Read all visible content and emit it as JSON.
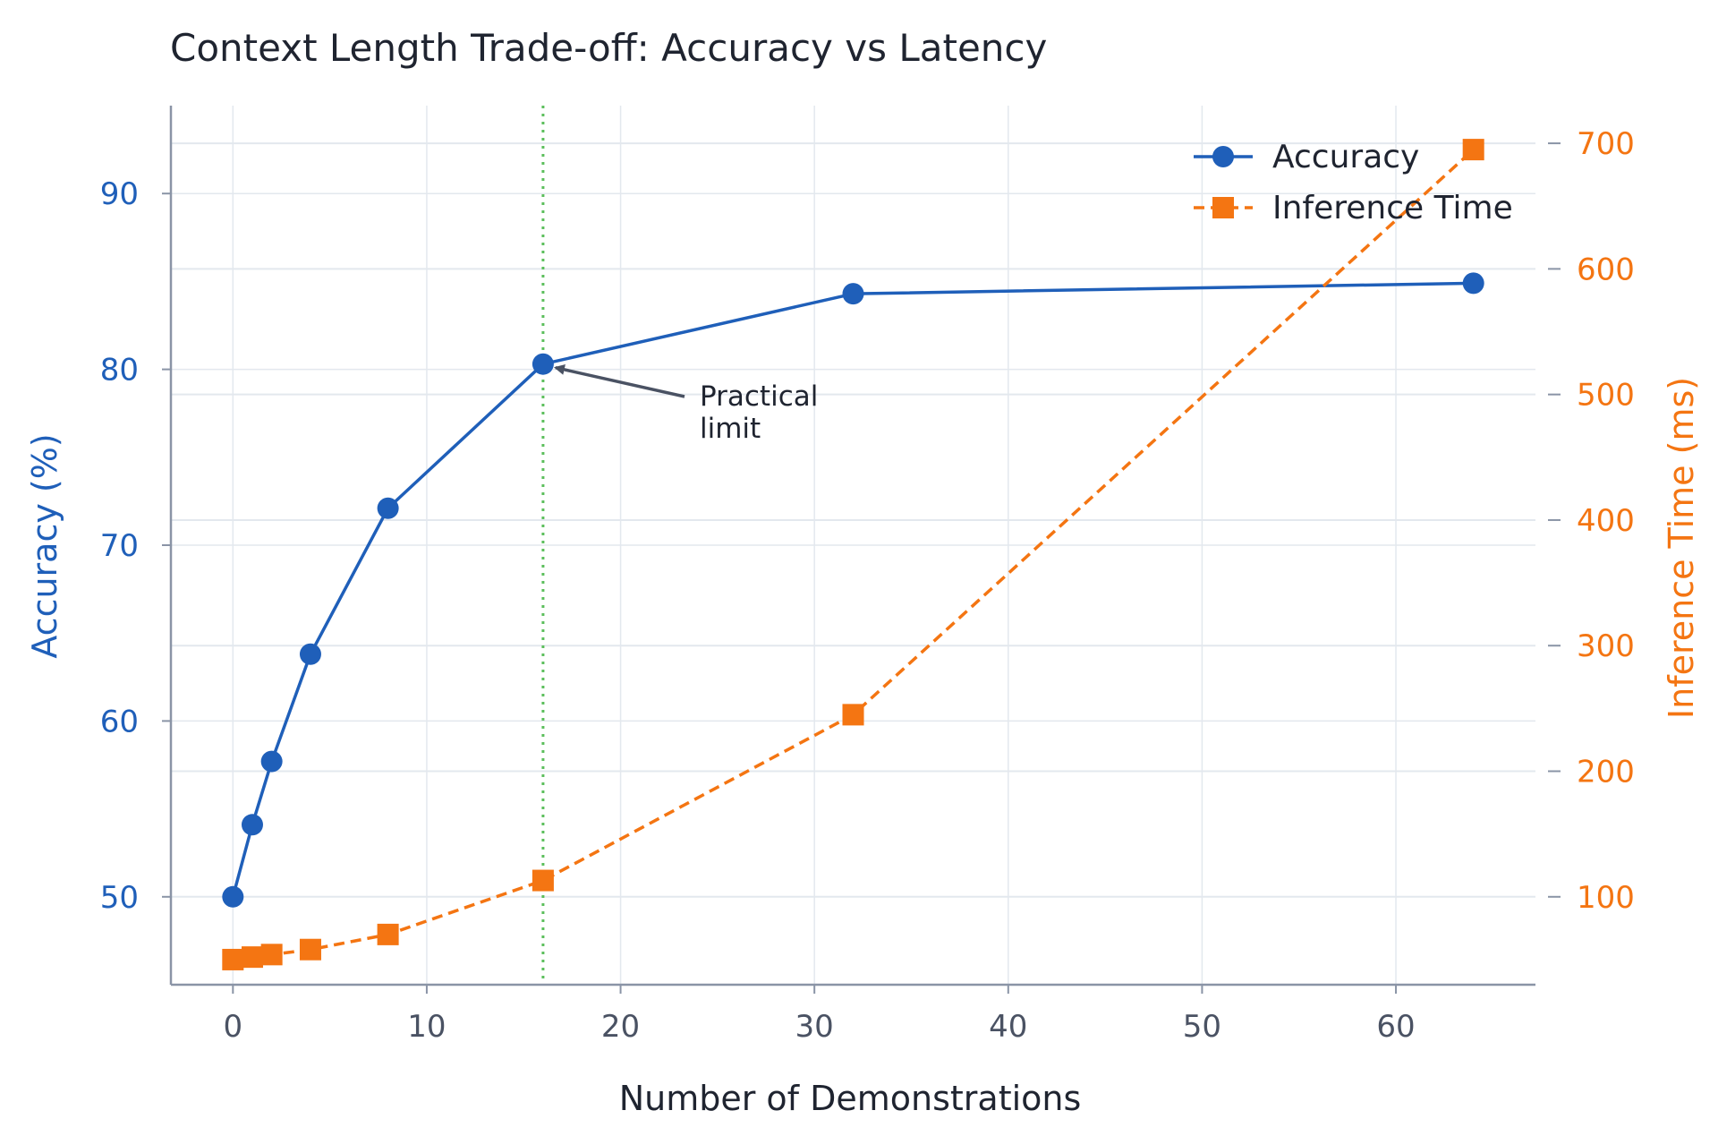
{
  "chart_data": {
    "type": "line",
    "title": "Context Length Trade-off: Accuracy vs Latency",
    "xlabel": "Number of Demonstrations",
    "ylabel_left": "Accuracy (%)",
    "ylabel_right": "Inference Time (ms)",
    "x": [
      0,
      1,
      2,
      4,
      8,
      16,
      32,
      64
    ],
    "xlim": [
      -3.2,
      67.2
    ],
    "xticks": [
      0,
      10,
      20,
      30,
      40,
      50,
      60
    ],
    "ylim_left": [
      45,
      95
    ],
    "yticks_left": [
      50,
      60,
      70,
      80,
      90
    ],
    "ylim_right": [
      30,
      730
    ],
    "yticks_right": [
      100,
      200,
      300,
      400,
      500,
      600,
      700
    ],
    "grid": true,
    "legend": "top-right",
    "series": [
      {
        "name": "Accuracy",
        "axis": "left",
        "marker": "circle",
        "linestyle": "solid",
        "color": "#1f5fb9",
        "values": [
          50.0,
          54.1,
          57.7,
          63.8,
          72.1,
          80.3,
          84.3,
          84.9
        ]
      },
      {
        "name": "Inference Time",
        "axis": "right",
        "marker": "square",
        "linestyle": "dashed",
        "color": "#f47512",
        "values": [
          50,
          52,
          54,
          58,
          70,
          113,
          245,
          695
        ]
      }
    ],
    "reference_line": {
      "x": 16,
      "color": "#5cbf5c",
      "style": "dotted"
    },
    "annotation": {
      "lines": [
        "Practical",
        "limit"
      ],
      "arrow_to": {
        "x": 16,
        "y": 80.3
      }
    },
    "colors": {
      "left_axis": "#1f5fb9",
      "right_axis": "#f47512",
      "grid": "#e3e8ee",
      "spine": "#8a94a6",
      "tick_text": "#4a5263"
    }
  }
}
